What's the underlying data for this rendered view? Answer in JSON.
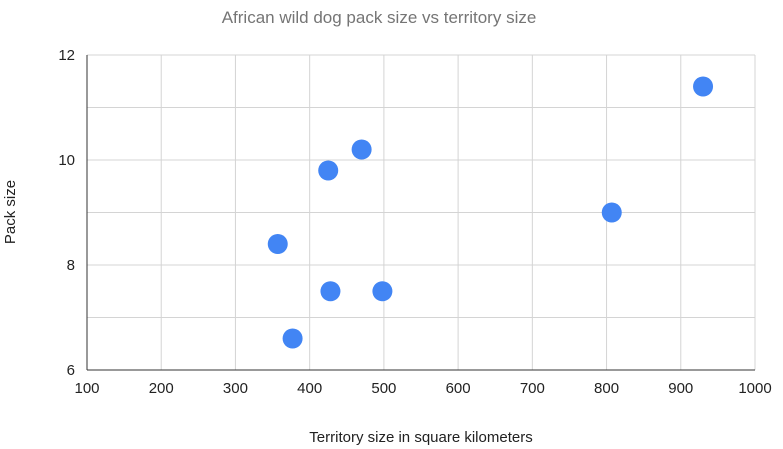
{
  "chart_data": {
    "type": "scatter",
    "title": "African wild dog pack size vs territory size",
    "xlabel": "Territory size in square kilometers",
    "ylabel": "Pack size",
    "xlim": [
      100,
      1000
    ],
    "ylim": [
      6,
      12
    ],
    "xticks": [
      "100",
      "200",
      "300",
      "400",
      "500",
      "600",
      "700",
      "800",
      "900",
      "1000"
    ],
    "yticks": [
      "6",
      "8",
      "10",
      "12"
    ],
    "grid": true,
    "legend": "none",
    "point_color": "#4285f4",
    "points": [
      {
        "x": 357,
        "y": 8.4
      },
      {
        "x": 377,
        "y": 6.6
      },
      {
        "x": 425,
        "y": 9.8
      },
      {
        "x": 428,
        "y": 7.5
      },
      {
        "x": 470,
        "y": 10.2
      },
      {
        "x": 498,
        "y": 7.5
      },
      {
        "x": 807,
        "y": 9.0
      },
      {
        "x": 930,
        "y": 11.4
      }
    ]
  }
}
